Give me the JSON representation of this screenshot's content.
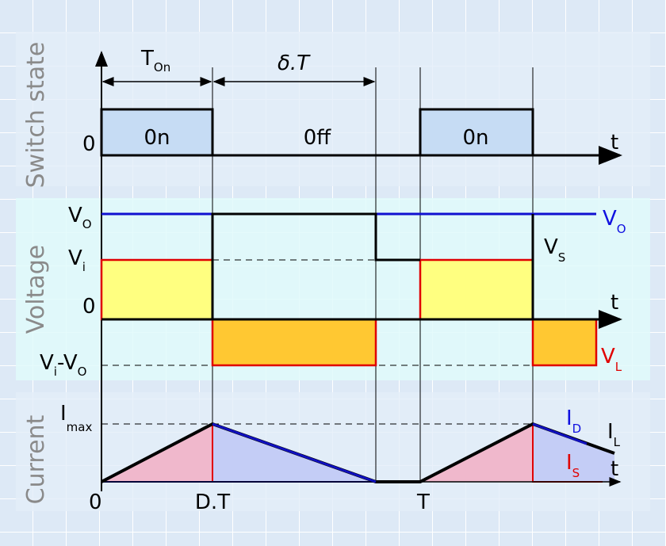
{
  "panels": {
    "switch_state": "Switch state",
    "voltage": "Voltage",
    "current": "Current"
  },
  "switch": {
    "t_on": {
      "main": "T",
      "sub": "On"
    },
    "delta_t": "δ.T",
    "states": [
      "0n",
      "0ff",
      "0n"
    ],
    "zero": "0",
    "time": "t"
  },
  "voltage": {
    "v_o": {
      "main": "V",
      "sub": "O"
    },
    "v_i": {
      "main": "V",
      "sub": "i"
    },
    "zero": "0",
    "vi_minus_vo": {
      "a": {
        "main": "V",
        "sub": "i"
      },
      "op": "-",
      "b": {
        "main": "V",
        "sub": "O"
      }
    },
    "time": "t",
    "legend_vo": {
      "main": "V",
      "sub": "O"
    },
    "legend_vs": {
      "main": "V",
      "sub": "S"
    },
    "legend_vl": {
      "main": "V",
      "sub": "L"
    }
  },
  "current": {
    "i_max": {
      "main": "I",
      "sub": "max"
    },
    "i_d": {
      "main": "I",
      "sub": "D"
    },
    "i_l": {
      "main": "I",
      "sub": "L"
    },
    "i_s": {
      "main": "I",
      "sub": "S"
    },
    "time": "t"
  },
  "x_axis": {
    "origin": "0",
    "dt": "D.T",
    "period": "T"
  }
}
